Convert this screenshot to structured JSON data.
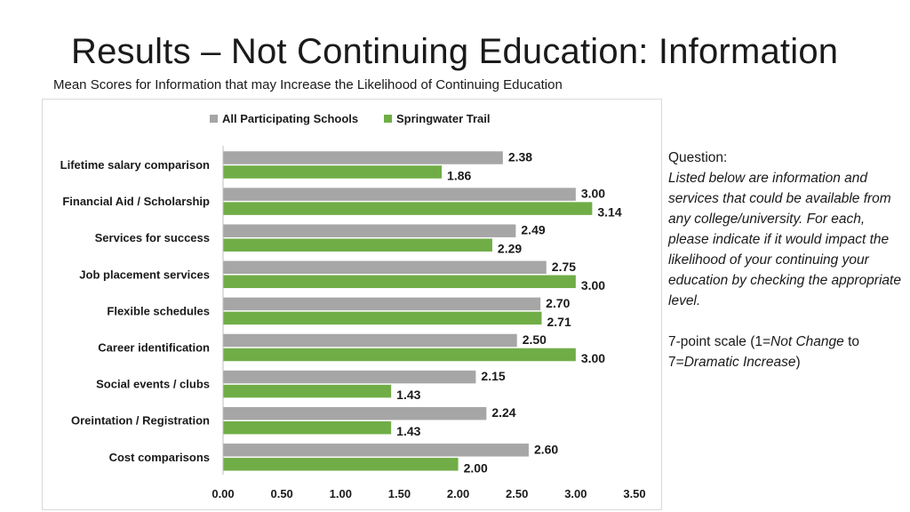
{
  "slide": {
    "title": "Results – Not Continuing Education: Information",
    "subtitle": "Mean Scores for Information that may Increase the Likelihood of Continuing Education"
  },
  "sidebar": {
    "question_label": "Question:",
    "question_text": "Listed below are information and services that could be available from any college/university.  For each, please indicate if it would impact the likelihood of your continuing your education by checking the appropriate level.",
    "scale_prefix": "7-point scale (1=",
    "scale_low": "Not Change",
    "scale_mid": " to 7=",
    "scale_high": "Dramatic Increase",
    "scale_suffix": ")"
  },
  "chart_data": {
    "type": "bar",
    "orientation": "horizontal",
    "categories": [
      "Lifetime salary comparison",
      "Financial Aid / Scholarship",
      "Services for success",
      "Job placement services",
      "Flexible schedules",
      "Career identification",
      "Social events / clubs",
      "Oreintation / Registration",
      "Cost comparisons"
    ],
    "series": [
      {
        "name": "All Participating Schools",
        "color": "#a6a6a6",
        "values": [
          2.38,
          3.0,
          2.49,
          2.75,
          2.7,
          2.5,
          2.15,
          2.24,
          2.6
        ],
        "labels": [
          "2.38",
          "3.00",
          "2.49",
          "2.75",
          "2.70",
          "2.50",
          "2.15",
          "2.24",
          "2.60"
        ]
      },
      {
        "name": "Springwater Trail",
        "color": "#70ad47",
        "values": [
          1.86,
          3.14,
          2.29,
          3.0,
          2.71,
          3.0,
          1.43,
          1.43,
          2.0
        ],
        "labels": [
          "1.86",
          "3.14",
          "2.29",
          "3.00",
          "2.71",
          "3.00",
          "1.43",
          "1.43",
          "2.00"
        ]
      }
    ],
    "xlim": [
      0,
      3.5
    ],
    "xticks": [
      "0.00",
      "0.50",
      "1.00",
      "1.50",
      "2.00",
      "2.50",
      "3.00",
      "3.50"
    ],
    "grid": false,
    "legend_position": "top"
  }
}
